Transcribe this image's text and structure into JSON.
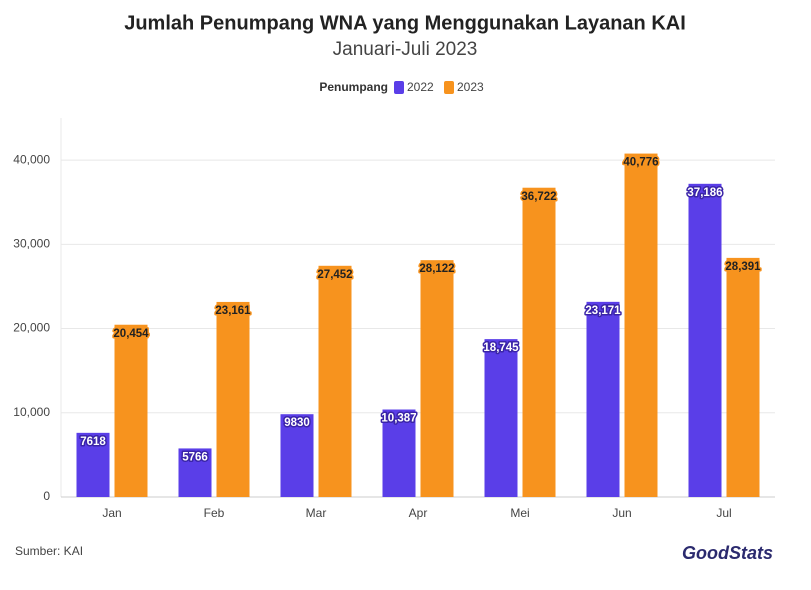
{
  "chart_data": {
    "type": "bar",
    "title": "Jumlah Penumpang WNA yang Menggunakan Layanan KAI",
    "subtitle": "Januari-Juli 2023",
    "legend_title": "Penumpang",
    "categories": [
      "Jan",
      "Feb",
      "Mar",
      "Apr",
      "Mei",
      "Jun",
      "Jul"
    ],
    "series": [
      {
        "name": "2022",
        "color": "#5a3ee8",
        "values": [
          7618,
          5766,
          9830,
          10387,
          18745,
          23171,
          37186
        ],
        "value_labels": [
          "7618",
          "5766",
          "9830",
          "10,387",
          "18,745",
          "23,171",
          "37,186"
        ]
      },
      {
        "name": "2023",
        "color": "#f7931e",
        "values": [
          20454,
          23161,
          27452,
          28122,
          36722,
          40776,
          28391
        ],
        "value_labels": [
          "20,454",
          "23,161",
          "27,452",
          "28,122",
          "36,722",
          "40,776",
          "28,391"
        ]
      }
    ],
    "ylim": [
      0,
      45000
    ],
    "yticks": [
      0,
      {
        "value": 10000,
        "label": "10,000"
      },
      {
        "value": 20000,
        "label": "20,000"
      },
      {
        "value": 30000,
        "label": "30,000"
      },
      {
        "value": 40000,
        "label": "40,000"
      }
    ],
    "grid": true,
    "source": "Sumber: KAI",
    "brand": "GoodStats"
  }
}
